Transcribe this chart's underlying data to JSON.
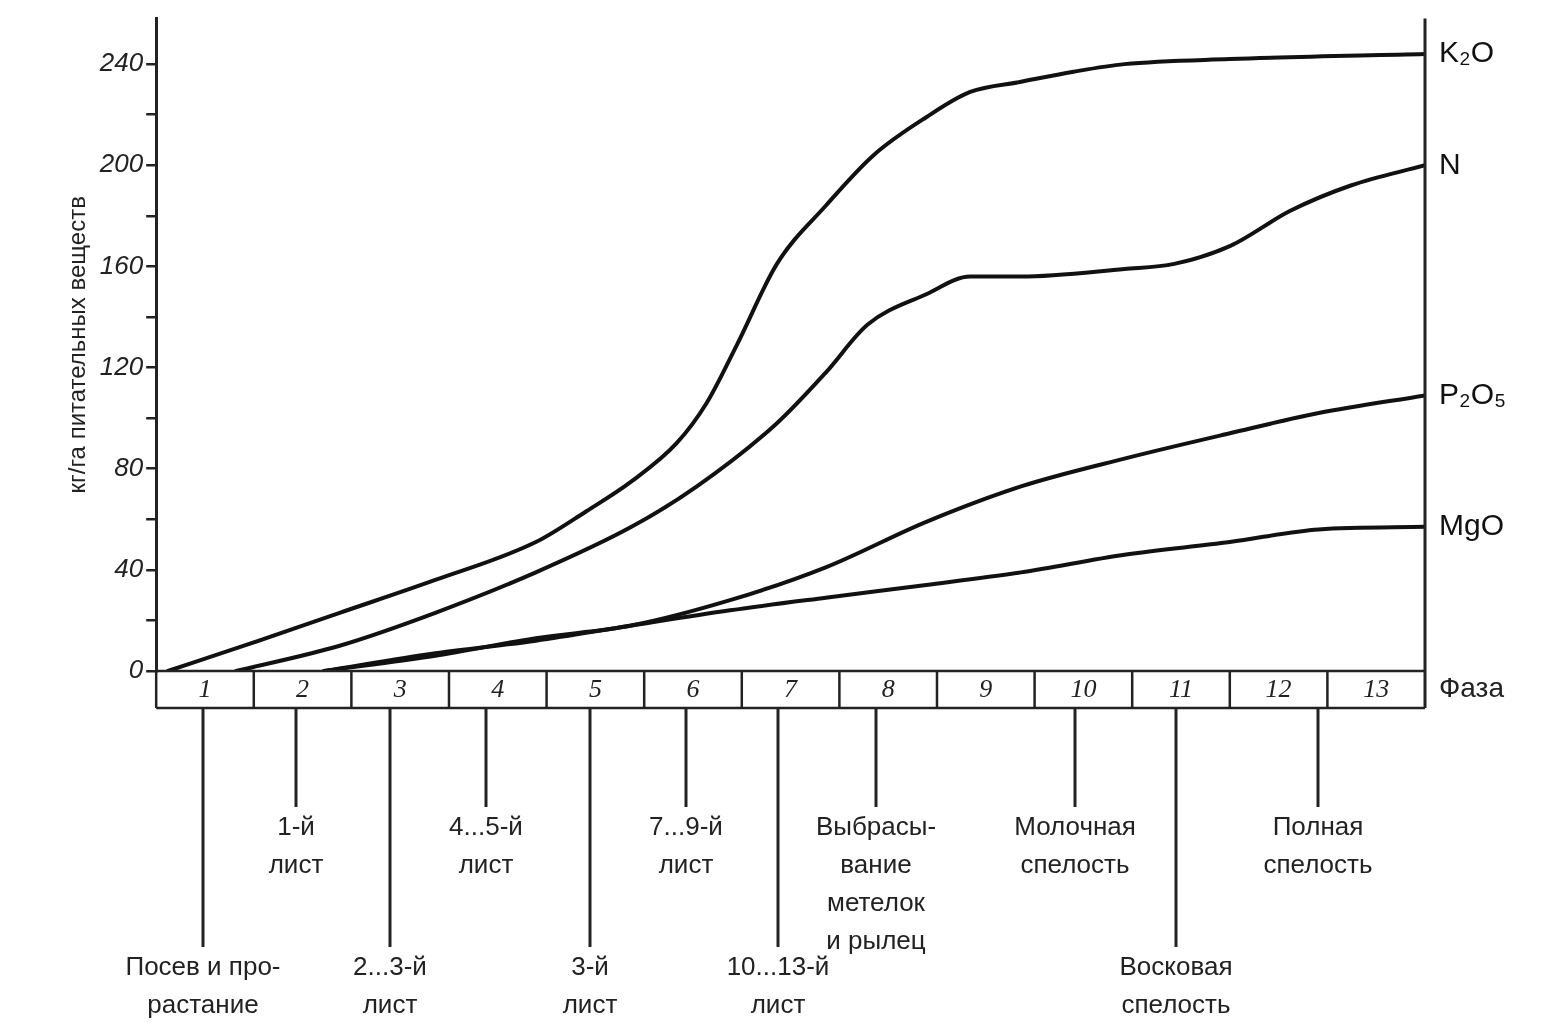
{
  "chart_data": {
    "type": "line",
    "ylabel": "кг/га питательных веществ",
    "xlabel": "Фаза",
    "xlim": [
      0,
      13
    ],
    "xticks": [
      {
        "value": 0.5,
        "label": "1"
      },
      {
        "value": 1.5,
        "label": "2"
      },
      {
        "value": 2.5,
        "label": "3"
      },
      {
        "value": 3.5,
        "label": "4"
      },
      {
        "value": 4.5,
        "label": "5"
      },
      {
        "value": 5.5,
        "label": "6"
      },
      {
        "value": 6.5,
        "label": "7"
      },
      {
        "value": 7.5,
        "label": "8"
      },
      {
        "value": 8.5,
        "label": "9"
      },
      {
        "value": 9.5,
        "label": "10"
      },
      {
        "value": 10.5,
        "label": "11"
      },
      {
        "value": 11.5,
        "label": "12"
      },
      {
        "value": 12.5,
        "label": "13"
      }
    ],
    "ylim": [
      0,
      258
    ],
    "yticks": [
      0,
      {
        "value": 20,
        "label": null
      },
      40,
      {
        "value": 60,
        "label": null
      },
      80,
      {
        "value": 100,
        "label": null
      },
      120,
      {
        "value": 140,
        "label": null
      },
      160,
      {
        "value": 180,
        "label": null
      },
      200,
      {
        "value": 220,
        "label": null
      },
      240
    ],
    "grid": false,
    "legend": false,
    "marker": "none",
    "line_style": "solid",
    "series": [
      {
        "name": "K₂O",
        "color": "#111111",
        "x": [
          0.12,
          0.9,
          1.88,
          2.86,
          3.89,
          4.4,
          4.87,
          5.33,
          5.64,
          5.95,
          6.36,
          6.86,
          7.35,
          7.89,
          8.34,
          8.86,
          9.4,
          9.92,
          11,
          13
        ],
        "values": [
          0,
          10,
          23,
          36,
          51,
          63,
          75,
          90,
          106,
          129,
          161,
          184,
          204,
          219,
          229,
          233,
          237,
          240,
          242,
          244
        ]
      },
      {
        "name": "N",
        "color": "#111111",
        "x": [
          0.82,
          1.88,
          2.86,
          3.89,
          4.87,
          5.54,
          6.36,
          6.86,
          7.29,
          7.89,
          8.34,
          8.86,
          9.92,
          10.43,
          11,
          11.62,
          12.24,
          13
        ],
        "values": [
          0,
          10,
          23,
          39,
          57,
          73,
          98,
          118,
          137,
          149,
          156,
          156,
          159,
          161,
          168,
          182,
          192,
          200
        ]
      },
      {
        "name": "P₂O₅",
        "color": "#111111",
        "x": [
          1.72,
          2.86,
          3.89,
          4.87,
          5.88,
          6.86,
          7.89,
          8.86,
          9.92,
          11,
          11.91,
          13
        ],
        "values": [
          0,
          6,
          13,
          18,
          28,
          41,
          59,
          73,
          84,
          94,
          102,
          109
        ]
      },
      {
        "name": "MgO",
        "color": "#111111",
        "x": [
          1.72,
          2.86,
          3.89,
          4.87,
          5.88,
          6.86,
          7.89,
          8.86,
          9.92,
          11,
          11.91,
          13
        ],
        "values": [
          0,
          7,
          12,
          18,
          24,
          29,
          34,
          39,
          46,
          51,
          56,
          57
        ]
      }
    ],
    "annotations": [
      "Посев и про-\nрастание",
      "1-й\nлист",
      "2...3-й\nлист",
      "4...5-й\nлист",
      "3-й\nлист",
      "7...9-й\nлист",
      "10...13-й\nлист",
      "Выбрасы-\nвание\nметелок\nи рылец",
      "Молочная\nспелость",
      "Восковая\nспелость",
      "Полная\nспелость"
    ]
  }
}
